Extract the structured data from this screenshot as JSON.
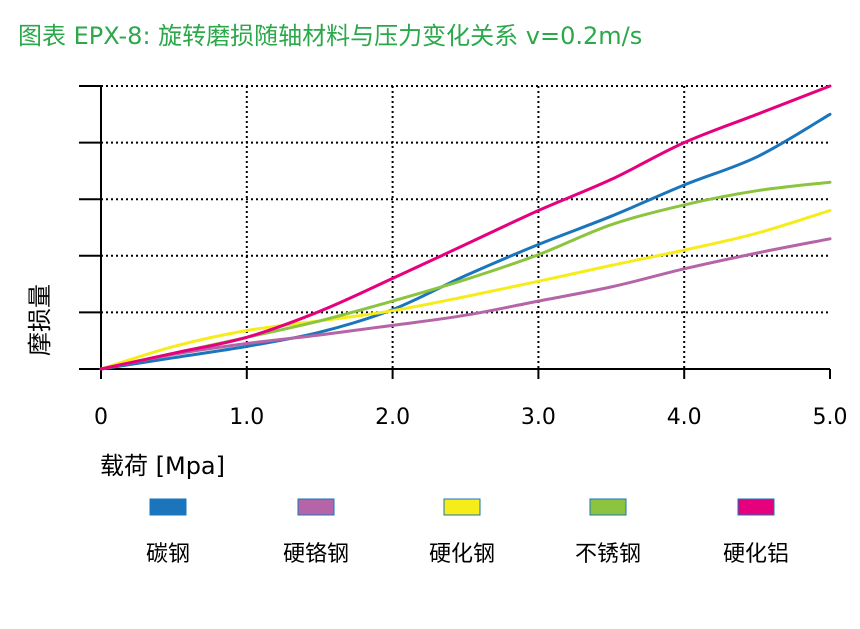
{
  "title": "图表 EPX-8: 旋转磨损随轴材料与压力变化关系 v=0.2m/s",
  "colors": {
    "title": "#2aa84a"
  },
  "chart_data": {
    "type": "line",
    "xlabel": "载荷 [Mpa]",
    "ylabel": "摩损量",
    "xlim": [
      0,
      5
    ],
    "ylim": [
      0,
      5
    ],
    "x_ticks": [
      "0",
      "1.0",
      "2.0",
      "3.0",
      "4.0",
      "5.0"
    ],
    "grid": true,
    "legend_position": "bottom",
    "x": [
      0,
      0.5,
      1.0,
      1.5,
      2.0,
      2.5,
      3.0,
      3.5,
      4.0,
      4.5,
      5.0
    ],
    "series": [
      {
        "name": "碳钢",
        "color": "#1a75bc",
        "values": [
          0,
          0.2,
          0.4,
          0.65,
          1.05,
          1.65,
          2.2,
          2.7,
          3.25,
          3.75,
          4.5
        ]
      },
      {
        "name": "硬铬钢",
        "color": "#b565a7",
        "values": [
          0,
          0.26,
          0.45,
          0.6,
          0.77,
          0.95,
          1.2,
          1.45,
          1.77,
          2.05,
          2.3
        ]
      },
      {
        "name": "硬化钢",
        "color": "#f6ec1a",
        "values": [
          0,
          0.4,
          0.68,
          0.85,
          1.03,
          1.28,
          1.55,
          1.83,
          2.1,
          2.4,
          2.8
        ]
      },
      {
        "name": "不锈钢",
        "color": "#8cc43f",
        "values": [
          0,
          0.28,
          0.56,
          0.85,
          1.2,
          1.58,
          2.02,
          2.55,
          2.9,
          3.15,
          3.3
        ]
      },
      {
        "name": "硬化铝",
        "color": "#e6007e",
        "values": [
          0,
          0.28,
          0.56,
          1.02,
          1.6,
          2.2,
          2.8,
          3.35,
          4.0,
          4.5,
          5.0
        ]
      }
    ]
  }
}
